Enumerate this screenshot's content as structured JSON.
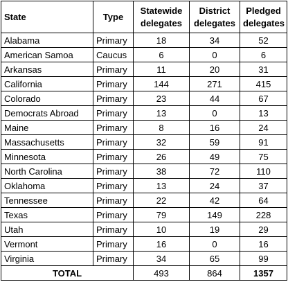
{
  "headers": {
    "state": "State",
    "type": "Type",
    "statewide": [
      "Statewide",
      "delegates"
    ],
    "district": [
      "District",
      "delegates"
    ],
    "pledged": [
      "Pledged",
      "delegates"
    ]
  },
  "rows": [
    {
      "state": "Alabama",
      "type": "Primary",
      "statewide": "18",
      "district": "34",
      "pledged": "52"
    },
    {
      "state": "American Samoa",
      "type": "Caucus",
      "statewide": "6",
      "district": "0",
      "pledged": "6"
    },
    {
      "state": "Arkansas",
      "type": "Primary",
      "statewide": "11",
      "district": "20",
      "pledged": "31"
    },
    {
      "state": "California",
      "type": "Primary",
      "statewide": "144",
      "district": "271",
      "pledged": "415"
    },
    {
      "state": "Colorado",
      "type": "Primary",
      "statewide": "23",
      "district": "44",
      "pledged": "67"
    },
    {
      "state": "Democrats Abroad",
      "type": "Primary",
      "statewide": "13",
      "district": "0",
      "pledged": "13"
    },
    {
      "state": "Maine",
      "type": "Primary",
      "statewide": "8",
      "district": "16",
      "pledged": "24"
    },
    {
      "state": "Massachusetts",
      "type": "Primary",
      "statewide": "32",
      "district": "59",
      "pledged": "91"
    },
    {
      "state": "Minnesota",
      "type": "Primary",
      "statewide": "26",
      "district": "49",
      "pledged": "75"
    },
    {
      "state": "North Carolina",
      "type": "Primary",
      "statewide": "38",
      "district": "72",
      "pledged": "110"
    },
    {
      "state": "Oklahoma",
      "type": "Primary",
      "statewide": "13",
      "district": "24",
      "pledged": "37"
    },
    {
      "state": "Tennessee",
      "type": "Primary",
      "statewide": "22",
      "district": "42",
      "pledged": "64"
    },
    {
      "state": "Texas",
      "type": "Primary",
      "statewide": "79",
      "district": "149",
      "pledged": "228"
    },
    {
      "state": "Utah",
      "type": "Primary",
      "statewide": "10",
      "district": "19",
      "pledged": "29"
    },
    {
      "state": "Vermont",
      "type": "Primary",
      "statewide": "16",
      "district": "0",
      "pledged": "16"
    },
    {
      "state": "Virginia",
      "type": "Primary",
      "statewide": "34",
      "district": "65",
      "pledged": "99"
    }
  ],
  "total": {
    "label": "TOTAL",
    "statewide": "493",
    "district": "864",
    "pledged": "1357"
  }
}
